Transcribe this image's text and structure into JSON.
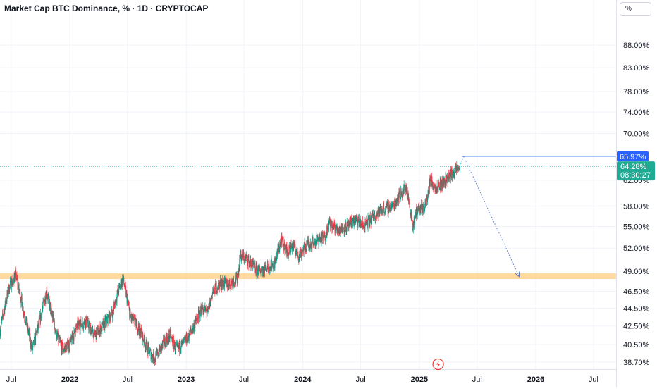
{
  "header": {
    "title": "Market Cap BTC Dominance, % · 1D · CRYPTOCAP",
    "unit_button": "%"
  },
  "colors": {
    "up": "#089981",
    "down": "#f23645",
    "resistance_line": "#2962ff",
    "support_zone": "#ffcc80",
    "projection_arrow": "#5b78d6",
    "current_price_line": "#22ab94",
    "event_icon": "#e53935"
  },
  "icons": {
    "event_marker": "lightning-icon"
  },
  "chart_data": {
    "type": "candlestick",
    "title": "Market Cap BTC Dominance, % · 1D · CRYPTOCAP",
    "interval": "1D",
    "y_scale": "log",
    "ylim": [
      38,
      94
    ],
    "xlim": [
      "2021-05-27",
      "2026-09-10"
    ],
    "y_ticks": [
      {
        "value": 88,
        "label": "88.00%"
      },
      {
        "value": 83,
        "label": "83.00%"
      },
      {
        "value": 78,
        "label": "78.00%"
      },
      {
        "value": 74,
        "label": "74.00%"
      },
      {
        "value": 70,
        "label": "70.00%"
      },
      {
        "value": 62,
        "label": "62.00%"
      },
      {
        "value": 58,
        "label": "58.00%"
      },
      {
        "value": 55,
        "label": "55.00%"
      },
      {
        "value": 52,
        "label": "52.00%"
      },
      {
        "value": 49,
        "label": "49.00%"
      },
      {
        "value": 46.5,
        "label": "46.50%"
      },
      {
        "value": 44.5,
        "label": "44.50%"
      },
      {
        "value": 42.5,
        "label": "42.50%"
      },
      {
        "value": 40.5,
        "label": "40.50%"
      },
      {
        "value": 38.7,
        "label": "38.70%"
      }
    ],
    "x_ticks": [
      {
        "date": "2021-07-01",
        "label": "Jul",
        "bold": false
      },
      {
        "date": "2022-01-01",
        "label": "2022",
        "bold": true
      },
      {
        "date": "2022-07-01",
        "label": "Jul",
        "bold": false
      },
      {
        "date": "2023-01-01",
        "label": "2023",
        "bold": true
      },
      {
        "date": "2023-07-01",
        "label": "Jul",
        "bold": false
      },
      {
        "date": "2024-01-01",
        "label": "2024",
        "bold": true
      },
      {
        "date": "2024-07-01",
        "label": "Jul",
        "bold": false
      },
      {
        "date": "2025-01-01",
        "label": "2025",
        "bold": true
      },
      {
        "date": "2025-07-01",
        "label": "Jul",
        "bold": false
      },
      {
        "date": "2026-01-01",
        "label": "2026",
        "bold": true
      },
      {
        "date": "2026-07-01",
        "label": "Jul",
        "bold": false
      }
    ],
    "price_path": [
      [
        "2021-05-27",
        42.0
      ],
      [
        "2021-06-10",
        44.5
      ],
      [
        "2021-06-25",
        47.0
      ],
      [
        "2021-07-15",
        48.5
      ],
      [
        "2021-08-10",
        44.0
      ],
      [
        "2021-09-05",
        40.0
      ],
      [
        "2021-09-25",
        42.5
      ],
      [
        "2021-10-20",
        46.5
      ],
      [
        "2021-11-20",
        41.5
      ],
      [
        "2021-12-10",
        40.0
      ],
      [
        "2022-01-01",
        40.5
      ],
      [
        "2022-01-25",
        42.5
      ],
      [
        "2022-02-20",
        43.0
      ],
      [
        "2022-03-20",
        41.5
      ],
      [
        "2022-04-15",
        42.5
      ],
      [
        "2022-05-15",
        44.0
      ],
      [
        "2022-06-01",
        46.5
      ],
      [
        "2022-06-17",
        48.0
      ],
      [
        "2022-07-10",
        43.5
      ],
      [
        "2022-08-10",
        42.0
      ],
      [
        "2022-09-01",
        40.0
      ],
      [
        "2022-09-25",
        39.0
      ],
      [
        "2022-10-20",
        40.5
      ],
      [
        "2022-11-10",
        41.5
      ],
      [
        "2022-11-30",
        40.0
      ],
      [
        "2022-12-20",
        40.5
      ],
      [
        "2023-01-10",
        41.5
      ],
      [
        "2023-01-25",
        42.5
      ],
      [
        "2023-02-20",
        44.5
      ],
      [
        "2023-03-10",
        44.0
      ],
      [
        "2023-03-25",
        46.5
      ],
      [
        "2023-04-20",
        47.5
      ],
      [
        "2023-05-20",
        47.5
      ],
      [
        "2023-06-10",
        48.0
      ],
      [
        "2023-06-20",
        51.0
      ],
      [
        "2023-07-10",
        50.5
      ],
      [
        "2023-08-10",
        49.0
      ],
      [
        "2023-09-10",
        49.5
      ],
      [
        "2023-10-05",
        50.0
      ],
      [
        "2023-10-25",
        53.0
      ],
      [
        "2023-11-15",
        51.5
      ],
      [
        "2023-12-01",
        52.5
      ],
      [
        "2023-12-20",
        51.0
      ],
      [
        "2024-01-15",
        52.5
      ],
      [
        "2024-02-10",
        53.0
      ],
      [
        "2024-03-10",
        53.5
      ],
      [
        "2024-03-25",
        55.5
      ],
      [
        "2024-04-20",
        54.5
      ],
      [
        "2024-05-20",
        55.0
      ],
      [
        "2024-06-15",
        56.0
      ],
      [
        "2024-07-10",
        55.0
      ],
      [
        "2024-08-10",
        56.5
      ],
      [
        "2024-09-10",
        57.5
      ],
      [
        "2024-10-10",
        58.0
      ],
      [
        "2024-11-05",
        60.0
      ],
      [
        "2024-11-20",
        61.0
      ],
      [
        "2024-12-05",
        57.0
      ],
      [
        "2024-12-12",
        55.0
      ],
      [
        "2024-12-25",
        57.5
      ],
      [
        "2025-01-15",
        57.5
      ],
      [
        "2025-01-30",
        60.0
      ],
      [
        "2025-02-03",
        62.0
      ],
      [
        "2025-02-20",
        61.0
      ],
      [
        "2025-03-15",
        61.5
      ],
      [
        "2025-04-01",
        62.5
      ],
      [
        "2025-04-20",
        63.5
      ],
      [
        "2025-05-08",
        64.28
      ]
    ],
    "last_value": 64.28,
    "last_value_label": "64.28%",
    "countdown": "08:30:27",
    "annotations": [
      {
        "type": "horizontal_line",
        "value": 65.97,
        "label": "65.97%",
        "from": "2025-05-15",
        "to": "right_edge"
      },
      {
        "type": "zone",
        "from_value": 48.0,
        "to_value": 48.7,
        "from": "left_edge",
        "to": "right_edge"
      },
      {
        "type": "arrow",
        "from": {
          "date": "2025-05-20",
          "value": 65.97
        },
        "to": {
          "date": "2025-11-10",
          "value": 48.3
        },
        "style": "dotted"
      },
      {
        "type": "event",
        "date": "2025-03-01",
        "icon": "lightning-icon"
      }
    ]
  }
}
